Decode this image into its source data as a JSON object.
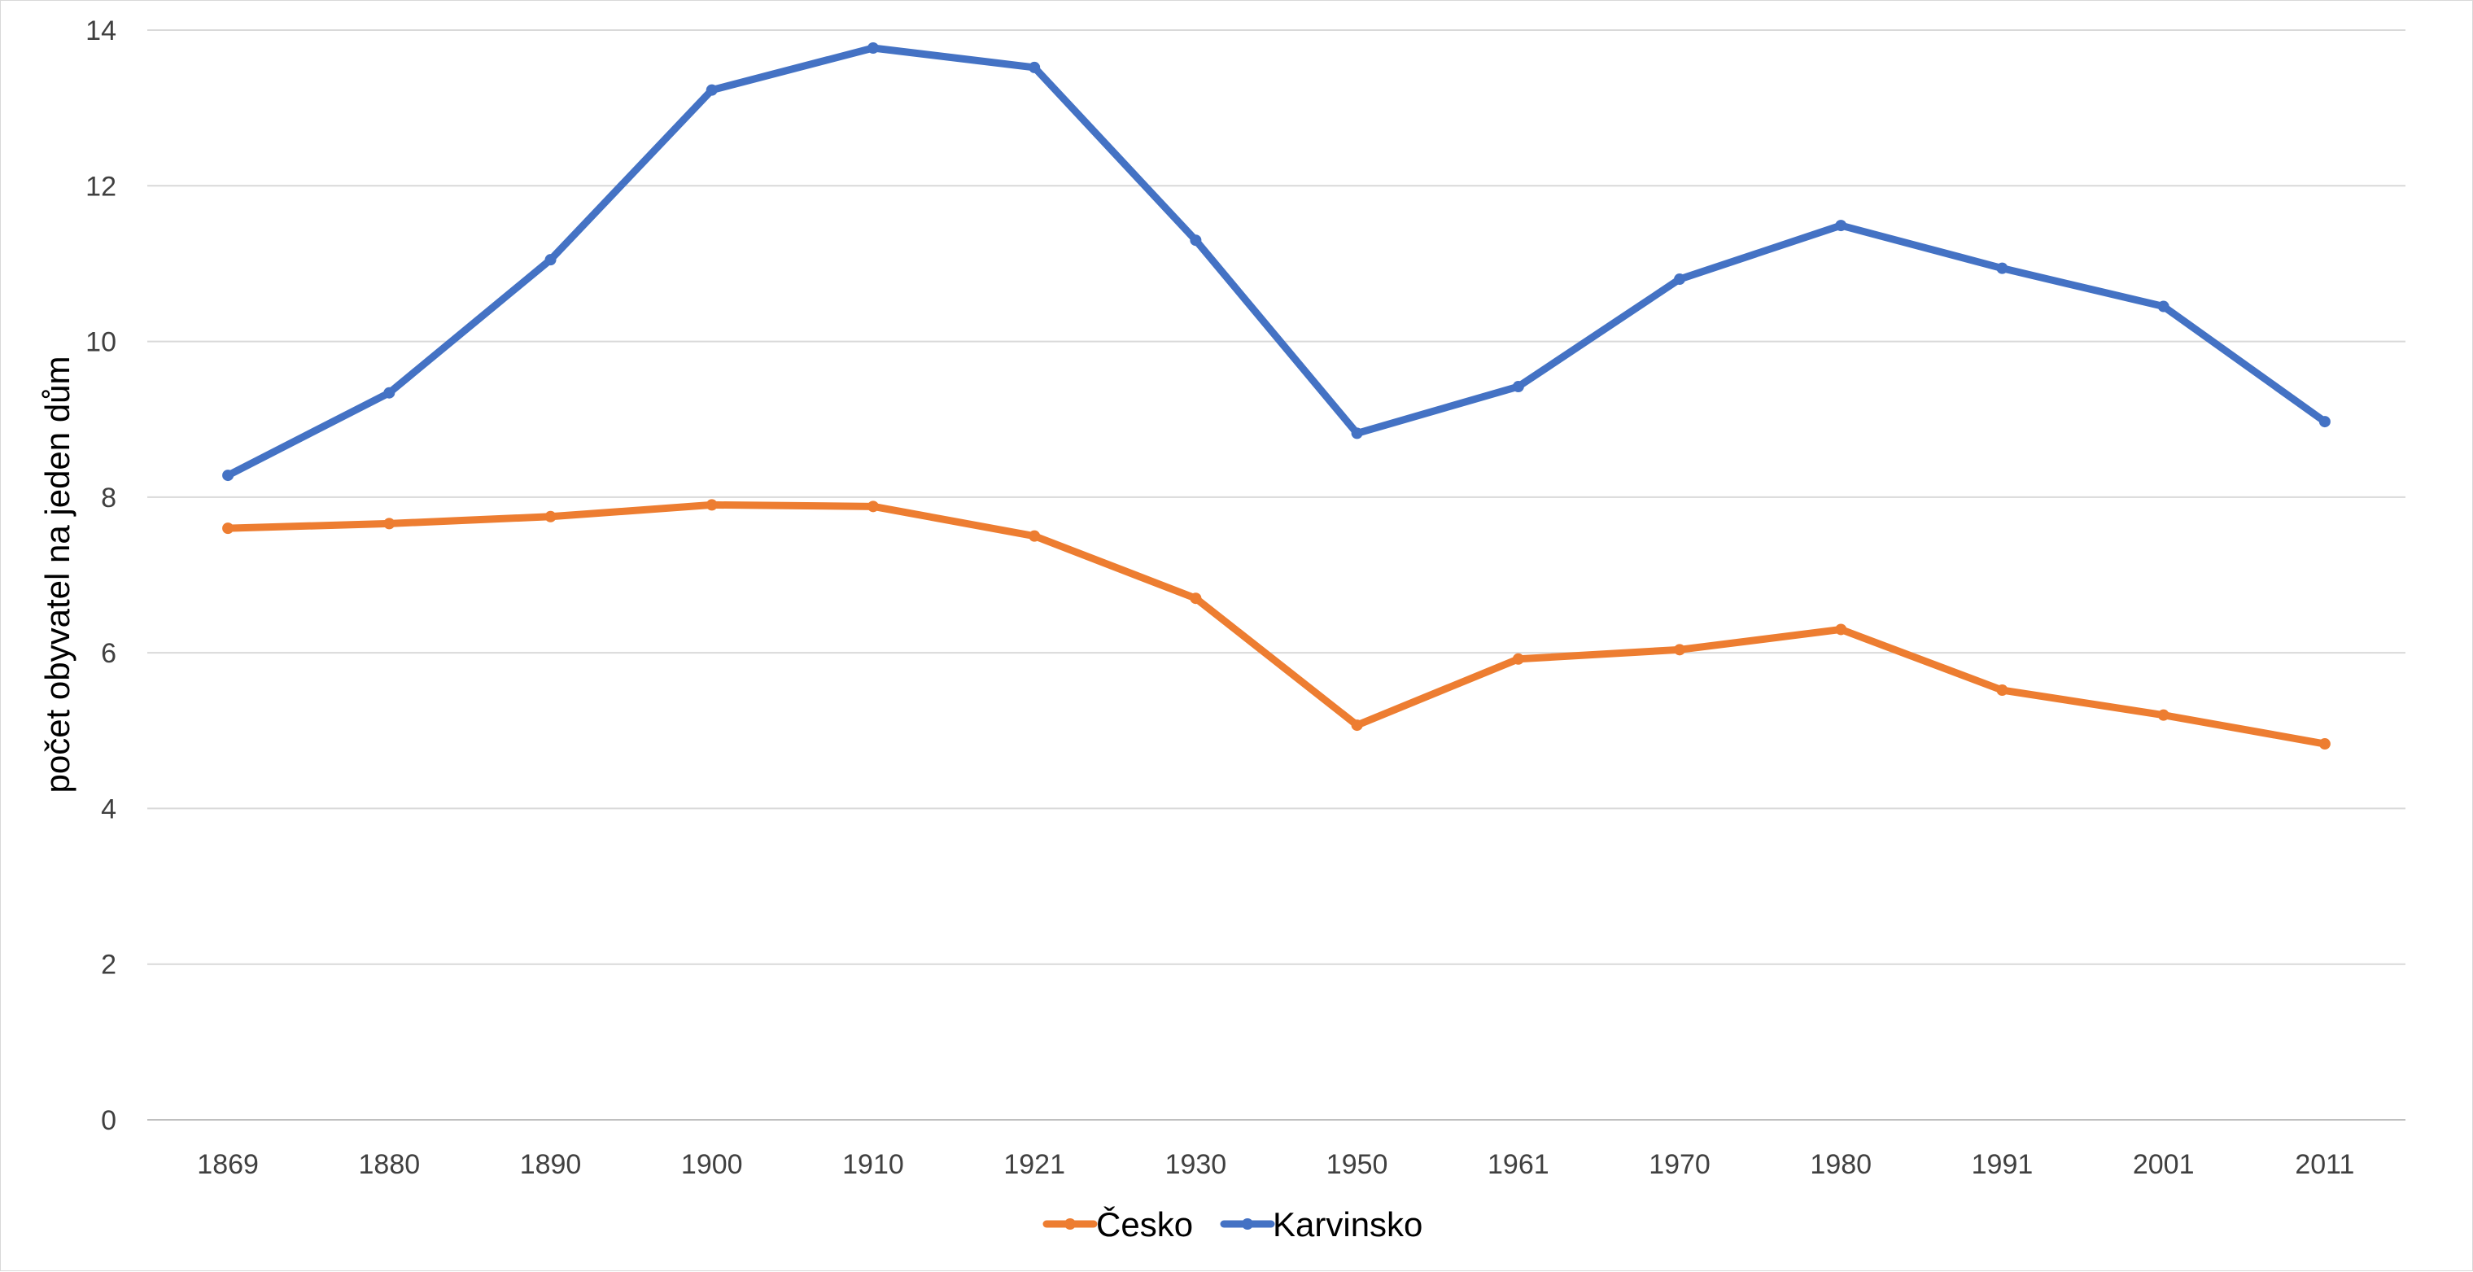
{
  "chart_data": {
    "type": "line",
    "title": "",
    "xlabel": "",
    "ylabel": "počet obyvatel na jeden dům",
    "categories": [
      "1869",
      "1880",
      "1890",
      "1900",
      "1910",
      "1921",
      "1930",
      "1950",
      "1961",
      "1970",
      "1980",
      "1991",
      "2001",
      "2011"
    ],
    "ylim": [
      0,
      14
    ],
    "yticks": [
      "0",
      "2",
      "4",
      "6",
      "8",
      "10",
      "12",
      "14"
    ],
    "grid": true,
    "legend_position": "bottom",
    "series": [
      {
        "name": "Česko",
        "color": "#ED7D31",
        "values": [
          7.6,
          7.66,
          7.75,
          7.9,
          7.88,
          7.5,
          6.7,
          5.07,
          5.92,
          6.04,
          6.3,
          5.52,
          5.2,
          4.83
        ]
      },
      {
        "name": "Karvinsko",
        "color": "#4472C4",
        "values": [
          8.28,
          9.34,
          11.05,
          13.23,
          13.77,
          13.52,
          11.3,
          8.82,
          9.42,
          10.8,
          11.49,
          10.94,
          10.45,
          8.97
        ]
      }
    ],
    "colors": {
      "grid": "#d9d9d9",
      "axis": "#bfbfbf",
      "text": "#404040"
    }
  }
}
